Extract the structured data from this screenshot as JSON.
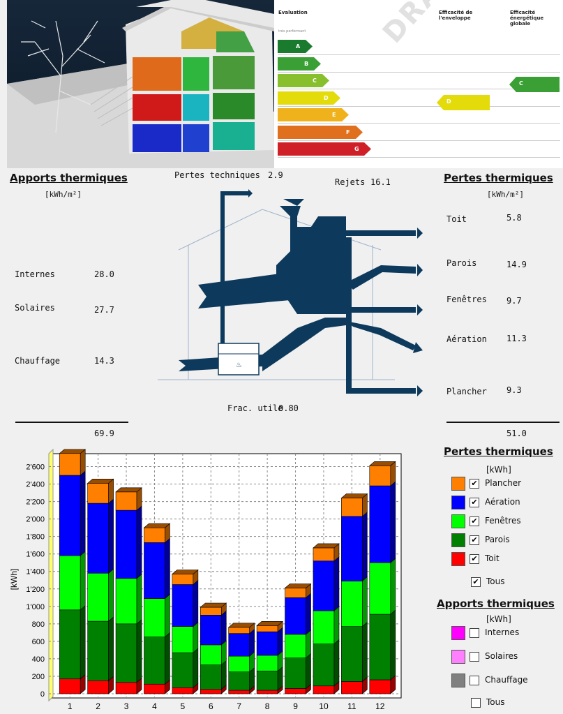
{
  "energy_label": {
    "header_eval": "Evaluation",
    "header_perf": "très performant",
    "header_env": "Efficacité de l'enveloppe",
    "header_glob": "Efficacité énergétique globale",
    "watermark": "DRAFT",
    "classes": [
      {
        "letter": "A",
        "color": "#1a7a2e"
      },
      {
        "letter": "B",
        "color": "#3aa035"
      },
      {
        "letter": "C",
        "color": "#88bf2c"
      },
      {
        "letter": "D",
        "color": "#e3dc0a"
      },
      {
        "letter": "E",
        "color": "#f0b21c"
      },
      {
        "letter": "F",
        "color": "#e0701e"
      },
      {
        "letter": "G",
        "color": "#cf2027"
      }
    ],
    "envelope_class": "D",
    "global_class": "C"
  },
  "apports": {
    "title": "Apports thermiques",
    "unit": "[kWh/m²]",
    "items": [
      {
        "label": "Internes",
        "value": "28.0"
      },
      {
        "label": "Solaires",
        "value": "27.7"
      },
      {
        "label": "Chauffage",
        "value": "14.3"
      }
    ],
    "total": "69.9"
  },
  "flow": {
    "pertes_techniques_label": "Pertes techniques",
    "pertes_techniques_value": "2.9",
    "rejets_label": "Rejets",
    "rejets_value": "16.1",
    "frac_label": "Frac. utile",
    "frac_value": "0.80"
  },
  "pertes": {
    "title": "Pertes thermiques",
    "unit": "[kWh/m²]",
    "items": [
      {
        "label": "Toit",
        "value": "5.8"
      },
      {
        "label": "Parois",
        "value": "14.9"
      },
      {
        "label": "Fenêtres",
        "value": "9.7"
      },
      {
        "label": "Aération",
        "value": "11.3"
      },
      {
        "label": "Plancher",
        "value": "9.3"
      }
    ],
    "total": "51.0"
  },
  "legend": {
    "pertes_title": "Pertes thermiques",
    "pertes_unit": "[kWh]",
    "pertes_items": [
      {
        "label": "Plancher",
        "color": "#ff8000",
        "checked": true
      },
      {
        "label": "Aération",
        "color": "#0000ff",
        "checked": true
      },
      {
        "label": "Fenêtres",
        "color": "#00ff00",
        "checked": true
      },
      {
        "label": "Parois",
        "color": "#008000",
        "checked": true
      },
      {
        "label": "Toit",
        "color": "#ff0000",
        "checked": true
      }
    ],
    "pertes_all": "Tous",
    "apports_title": "Apports thermiques",
    "apports_unit": "[kWh]",
    "apports_items": [
      {
        "label": "Internes",
        "color": "#ff00ff",
        "checked": false
      },
      {
        "label": "Solaires",
        "color": "#ff80ff",
        "checked": false
      },
      {
        "label": "Chauffage",
        "color": "#808080",
        "checked": false
      }
    ],
    "apports_all": "Tous"
  },
  "chart_data": {
    "type": "bar",
    "stacked": true,
    "categories": [
      "1",
      "2",
      "3",
      "4",
      "5",
      "6",
      "7",
      "8",
      "9",
      "10",
      "11",
      "12"
    ],
    "ylabel": "[kWh]",
    "ylim": [
      0,
      2700
    ],
    "yticks": [
      "0",
      "200",
      "400",
      "600",
      "800",
      "1'000",
      "1'200",
      "1'400",
      "1'600",
      "1'800",
      "2'000",
      "2'200",
      "2'400",
      "2'600"
    ],
    "grid": true,
    "series": [
      {
        "name": "Toit",
        "color": "#ff0000",
        "values": [
          170,
          150,
          130,
          110,
          70,
          50,
          40,
          40,
          60,
          90,
          140,
          160
        ]
      },
      {
        "name": "Parois",
        "color": "#008000",
        "values": [
          790,
          680,
          670,
          540,
          400,
          280,
          210,
          220,
          350,
          480,
          630,
          750
        ]
      },
      {
        "name": "Fenêtres",
        "color": "#00ff00",
        "values": [
          620,
          550,
          520,
          440,
          300,
          230,
          180,
          180,
          270,
          380,
          520,
          590
        ]
      },
      {
        "name": "Aération",
        "color": "#0000ff",
        "values": [
          920,
          800,
          780,
          640,
          480,
          340,
          260,
          270,
          420,
          570,
          740,
          880
        ]
      },
      {
        "name": "Plancher",
        "color": "#ff8000",
        "values": [
          250,
          230,
          210,
          170,
          120,
          90,
          70,
          70,
          110,
          150,
          210,
          230
        ]
      }
    ]
  }
}
